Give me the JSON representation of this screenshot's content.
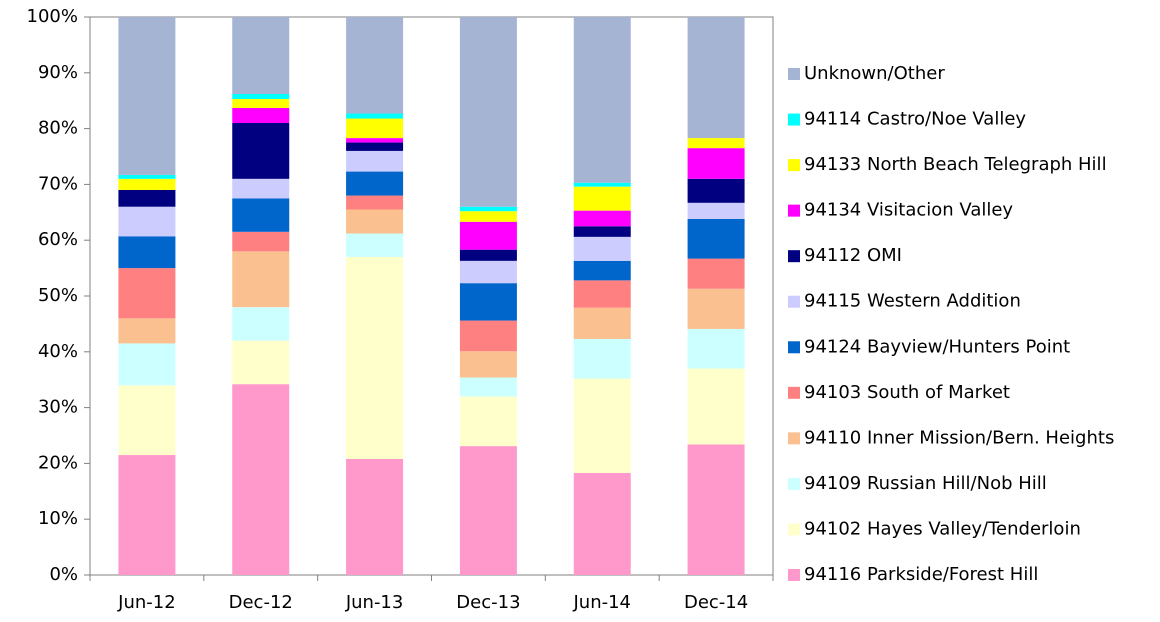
{
  "chart_data": {
    "type": "stacked_bar",
    "categories": [
      "Jun-12",
      "Dec-12",
      "Jun-13",
      "Dec-13",
      "Jun-14",
      "Dec-14"
    ],
    "ylim": [
      0,
      100
    ],
    "yticks": [
      {
        "value": 0,
        "label": "0%"
      },
      {
        "value": 10,
        "label": "10%"
      },
      {
        "value": 20,
        "label": "20%"
      },
      {
        "value": 30,
        "label": "30%"
      },
      {
        "value": 40,
        "label": "40%"
      },
      {
        "value": 50,
        "label": "50%"
      },
      {
        "value": 60,
        "label": "60%"
      },
      {
        "value": 70,
        "label": "70%"
      },
      {
        "value": 80,
        "label": "80%"
      },
      {
        "value": 90,
        "label": "90%"
      },
      {
        "value": 100,
        "label": "100%"
      }
    ],
    "series": [
      {
        "name": "94116 Parkside/Forest Hill",
        "color": "#ff99cc",
        "values": [
          21.5,
          34.2,
          20.8,
          23.1,
          18.3,
          23.4
        ]
      },
      {
        "name": "94102 Hayes Valley/Tenderloin",
        "color": "#ffffcc",
        "values": [
          12.5,
          7.8,
          36.2,
          8.9,
          16.9,
          13.6
        ]
      },
      {
        "name": "94109 Russian Hill/Nob Hill",
        "color": "#ccffff",
        "values": [
          7.5,
          6,
          4.2,
          3.4,
          7.1,
          7.1
        ]
      },
      {
        "name": "94110 Inner Mission/Bern. Heights",
        "color": "#fac090",
        "values": [
          4.5,
          10,
          4.3,
          4.7,
          5.6,
          7.2
        ]
      },
      {
        "name": "94103 South of Market",
        "color": "#ff8080",
        "values": [
          9,
          3.5,
          2.5,
          5.5,
          4.9,
          5.4
        ]
      },
      {
        "name": "94124 Bayview/Hunters Point",
        "color": "#0066cc",
        "values": [
          5.7,
          6,
          4.3,
          6.7,
          3.5,
          7.1
        ]
      },
      {
        "name": "94115 Western Addition",
        "color": "#ccccff",
        "values": [
          5.3,
          3.5,
          3.7,
          4,
          4.3,
          2.9
        ]
      },
      {
        "name": "94112 OMI",
        "color": "#000080",
        "values": [
          3,
          10,
          1.5,
          2,
          1.9,
          4.3
        ]
      },
      {
        "name": "94134 Visitacion Valley",
        "color": "#ff00ff",
        "values": [
          0,
          2.7,
          0.8,
          5,
          2.8,
          5.5
        ]
      },
      {
        "name": "94133 North Beach Telegraph Hill",
        "color": "#ffff00",
        "values": [
          2,
          1.6,
          3.5,
          1.9,
          4.3,
          1.8
        ]
      },
      {
        "name": "94114 Castro/Noe Valley",
        "color": "#00ffff",
        "values": [
          0.7,
          0.9,
          0.9,
          0.8,
          0.7,
          0
        ]
      },
      {
        "name": "Unknown/Other",
        "color": "#a6b4d4",
        "values": [
          28.3,
          13.8,
          17.3,
          34,
          29.7,
          21.7
        ]
      }
    ]
  }
}
